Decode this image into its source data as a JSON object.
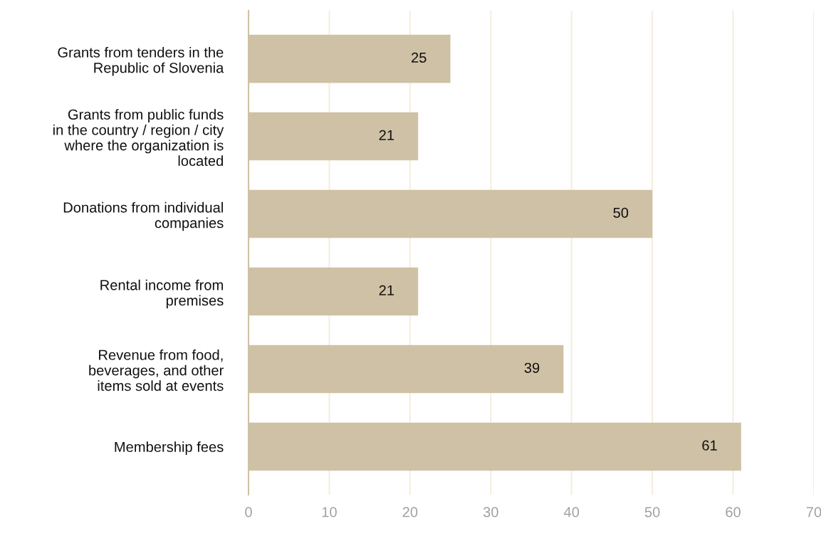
{
  "chart_data": {
    "type": "bar",
    "orientation": "horizontal",
    "categories": [
      "Grants from tenders in the\nRepublic of Slovenia",
      "Grants from public funds\nin the country / region / city\nwhere the organization is\nlocated",
      "Donations from individual\ncompanies",
      "Rental income from\npremises",
      "Revenue from food,\nbeverages, and other\nitems sold at events",
      "Membership fees"
    ],
    "values": [
      25,
      21,
      50,
      21,
      39,
      61
    ],
    "color": "#cfc1a5",
    "data_labels": true,
    "xlim": [
      0,
      70
    ],
    "xticks": [
      0,
      10,
      20,
      30,
      40,
      50,
      60,
      70
    ],
    "grid": "x",
    "legend": false
  }
}
